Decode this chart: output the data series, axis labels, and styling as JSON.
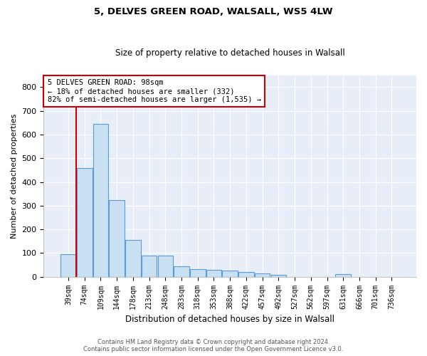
{
  "title1": "5, DELVES GREEN ROAD, WALSALL, WS5 4LW",
  "title2": "Size of property relative to detached houses in Walsall",
  "xlabel": "Distribution of detached houses by size in Walsall",
  "ylabel": "Number of detached properties",
  "categories": [
    "39sqm",
    "74sqm",
    "109sqm",
    "144sqm",
    "178sqm",
    "213sqm",
    "248sqm",
    "283sqm",
    "318sqm",
    "353sqm",
    "388sqm",
    "422sqm",
    "457sqm",
    "492sqm",
    "527sqm",
    "562sqm",
    "597sqm",
    "631sqm",
    "666sqm",
    "701sqm",
    "736sqm"
  ],
  "values": [
    95,
    460,
    645,
    325,
    155,
    90,
    90,
    45,
    32,
    30,
    25,
    20,
    15,
    8,
    0,
    0,
    0,
    12,
    0,
    0,
    0
  ],
  "bar_color": "#c9dff2",
  "bar_edge_color": "#5b9bd5",
  "property_line_color": "#cc0000",
  "annotation_text": "5 DELVES GREEN ROAD: 98sqm\n← 18% of detached houses are smaller (332)\n82% of semi-detached houses are larger (1,535) →",
  "annotation_box_color": "#cc0000",
  "ylim": [
    0,
    850
  ],
  "yticks": [
    0,
    100,
    200,
    300,
    400,
    500,
    600,
    700,
    800
  ],
  "plot_bg_color": "#e8eef8",
  "grid_color": "#ffffff",
  "footer1": "Contains HM Land Registry data © Crown copyright and database right 2024.",
  "footer2": "Contains public sector information licensed under the Open Government Licence v3.0."
}
